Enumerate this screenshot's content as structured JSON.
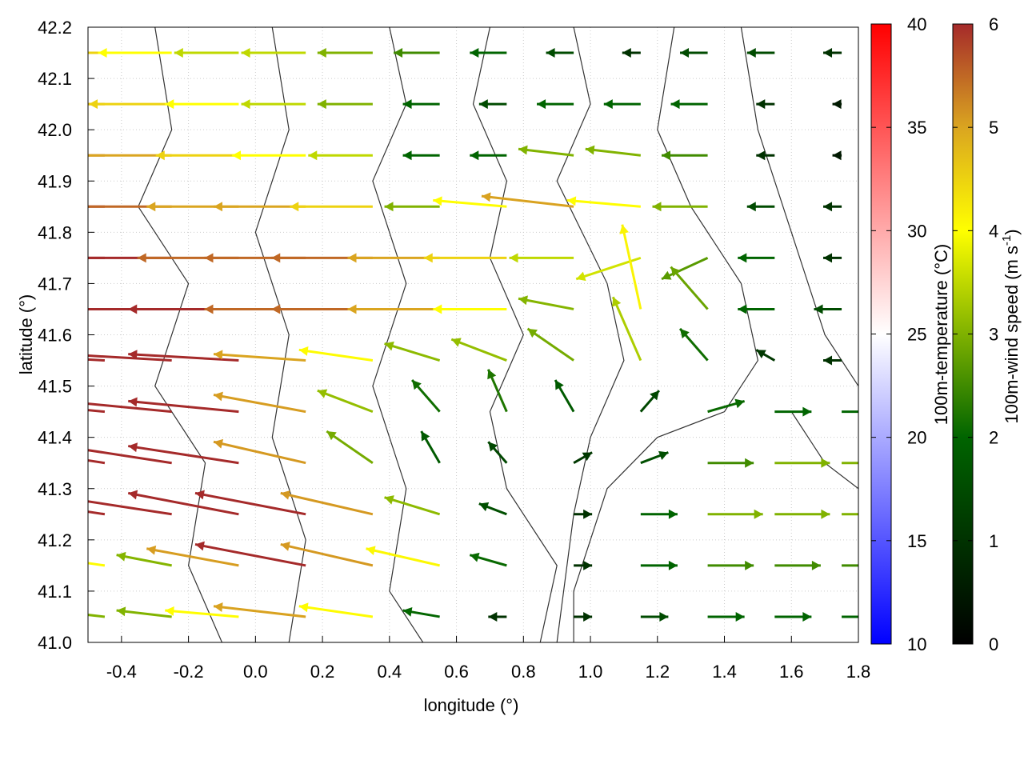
{
  "chart_data": {
    "type": "vector-field",
    "xlabel": "longitude (°)",
    "ylabel": "latitude (°)",
    "xlim": [
      -0.5,
      1.8
    ],
    "ylim": [
      41.0,
      42.2
    ],
    "xticks": [
      "-0.4",
      "-0.2",
      "0.0",
      "0.2",
      "0.4",
      "0.6",
      "0.8",
      "1.0",
      "1.2",
      "1.4",
      "1.6",
      "1.8"
    ],
    "xtick_values": [
      -0.4,
      -0.2,
      0.0,
      0.2,
      0.4,
      0.6,
      0.8,
      1.0,
      1.2,
      1.4,
      1.6,
      1.8
    ],
    "yticks": [
      "41.0",
      "41.1",
      "41.2",
      "41.3",
      "41.4",
      "41.5",
      "41.6",
      "41.7",
      "41.8",
      "41.9",
      "42.0",
      "42.1",
      "42.2"
    ],
    "ytick_values": [
      41.0,
      41.1,
      41.2,
      41.3,
      41.4,
      41.5,
      41.6,
      41.7,
      41.8,
      41.9,
      42.0,
      42.1,
      42.2
    ],
    "grid": true,
    "colorbars": [
      {
        "label": "100m-temperature (°C)",
        "range": [
          10,
          40
        ],
        "ticks": [
          "10",
          "15",
          "20",
          "25",
          "30",
          "35",
          "40"
        ],
        "colors": [
          "#0000ff",
          "#ffffff",
          "#ff0000"
        ]
      },
      {
        "label_main": "100m-wind speed (m s",
        "label_sup": "-1",
        "label_end": ")",
        "range": [
          0,
          6
        ],
        "ticks": [
          "0",
          "1",
          "2",
          "3",
          "4",
          "5",
          "6"
        ],
        "colors": [
          "#000000",
          "#006400",
          "#ffff00",
          "#daa520",
          "#a52a2a"
        ]
      }
    ],
    "wind_units": "m/s",
    "grid_lons": [
      -0.45,
      -0.25,
      -0.05,
      0.15,
      0.35,
      0.55,
      0.75,
      0.95,
      1.15,
      1.35,
      1.55,
      1.75
    ],
    "grid_lats": [
      42.15,
      42.05,
      41.95,
      41.85,
      41.75,
      41.65,
      41.55,
      41.45,
      41.35,
      41.25,
      41.15,
      41.05
    ],
    "u": [
      [
        -4.5,
        -4,
        -3.5,
        -3.5,
        -3,
        -2.5,
        -2,
        -1.5,
        -1,
        -1.5,
        -1.5,
        -1
      ],
      [
        -5,
        -4.5,
        -4,
        -3.5,
        -3,
        -2,
        -1.5,
        -2,
        -2,
        -2,
        -1,
        -0.5
      ],
      [
        -5.5,
        -5,
        -4.5,
        -4,
        -3.5,
        -2,
        -2,
        -3,
        -3,
        -2.5,
        -1,
        -0.5
      ],
      [
        -6,
        -5.5,
        -5,
        -5,
        -4.5,
        -3,
        -4,
        -5,
        -4,
        -3,
        -1.5,
        -1
      ],
      [
        -6,
        -6,
        -5.5,
        -5.5,
        -5.5,
        -5,
        -4.5,
        -3.5,
        -3.5,
        -2.5,
        -2,
        -1
      ],
      [
        -6,
        -6,
        -6,
        -5.5,
        -5.5,
        -5,
        -4,
        -3,
        -1,
        -2,
        -2,
        -1.5
      ],
      [
        -6,
        -6,
        -6,
        -5,
        -4,
        -3,
        -3,
        -2.5,
        -1.5,
        -1.5,
        -1,
        -1
      ],
      [
        -6,
        -6,
        -6,
        -5,
        -3,
        -1.5,
        -1,
        -1,
        1,
        2,
        2,
        2
      ],
      [
        -6,
        -6,
        -6,
        -5,
        -2.5,
        -1,
        -1,
        1,
        1.5,
        2.5,
        3,
        3
      ],
      [
        -6,
        -6,
        -6,
        -6,
        -5,
        -3,
        -1.5,
        1,
        2,
        3,
        3,
        3
      ],
      [
        -4,
        -3,
        -5,
        -6,
        -5,
        -4,
        -2,
        1,
        2,
        2.5,
        2.5,
        2.5
      ],
      [
        -3,
        -3,
        -4,
        -5,
        -4,
        -2,
        -1,
        1,
        1.5,
        2,
        2,
        2
      ]
    ],
    "v": [
      [
        0,
        0,
        0,
        0,
        0,
        0,
        0,
        0,
        0,
        0,
        0,
        0
      ],
      [
        0,
        0,
        0,
        0,
        0,
        0,
        0,
        0,
        0,
        0,
        0,
        0
      ],
      [
        0,
        0,
        0,
        0,
        0,
        0,
        0,
        0.3,
        0.3,
        0,
        0,
        0
      ],
      [
        0,
        0,
        0,
        0,
        0,
        0,
        0.3,
        0.5,
        0.3,
        0,
        0,
        0
      ],
      [
        0,
        0,
        0,
        0,
        0,
        0,
        0,
        0,
        -1,
        -1,
        0,
        0
      ],
      [
        0,
        0,
        0,
        0,
        0,
        0,
        0,
        0.5,
        4,
        2,
        0,
        0
      ],
      [
        0.3,
        0.3,
        0.3,
        0.3,
        0.5,
        0.8,
        1,
        1.5,
        3,
        1.5,
        0.5,
        0
      ],
      [
        0.5,
        0.5,
        0.5,
        0.8,
        1,
        1.5,
        2,
        1.5,
        1,
        0.5,
        0,
        0
      ],
      [
        0.8,
        0.8,
        0.8,
        1,
        1.5,
        1.5,
        1,
        0.5,
        0.5,
        0,
        0,
        0
      ],
      [
        0.8,
        0.8,
        1,
        1,
        1,
        0.8,
        0.5,
        0,
        0,
        0,
        0,
        0
      ],
      [
        0.5,
        0.5,
        0.8,
        1,
        1,
        0.8,
        0.5,
        0,
        0,
        0,
        0,
        0
      ],
      [
        0.3,
        0.3,
        0.3,
        0.5,
        0.5,
        0.3,
        0,
        0,
        0,
        0,
        0,
        0
      ]
    ],
    "contours": [
      [
        [
          -0.3,
          42.2
        ],
        [
          -0.25,
          42.0
        ],
        [
          -0.35,
          41.85
        ],
        [
          -0.2,
          41.7
        ],
        [
          -0.3,
          41.5
        ],
        [
          -0.15,
          41.35
        ],
        [
          -0.2,
          41.15
        ],
        [
          -0.1,
          41.0
        ]
      ],
      [
        [
          0.05,
          42.2
        ],
        [
          0.1,
          42.0
        ],
        [
          0.0,
          41.8
        ],
        [
          0.1,
          41.6
        ],
        [
          0.05,
          41.4
        ],
        [
          0.15,
          41.2
        ],
        [
          0.1,
          41.0
        ]
      ],
      [
        [
          0.4,
          42.2
        ],
        [
          0.45,
          42.05
        ],
        [
          0.35,
          41.9
        ],
        [
          0.45,
          41.7
        ],
        [
          0.35,
          41.5
        ],
        [
          0.45,
          41.3
        ],
        [
          0.4,
          41.1
        ],
        [
          0.5,
          41.0
        ]
      ],
      [
        [
          0.7,
          42.2
        ],
        [
          0.65,
          42.05
        ],
        [
          0.75,
          41.9
        ],
        [
          0.7,
          41.75
        ],
        [
          0.8,
          41.6
        ],
        [
          0.7,
          41.45
        ],
        [
          0.75,
          41.3
        ],
        [
          0.9,
          41.15
        ],
        [
          0.85,
          41.0
        ]
      ],
      [
        [
          0.95,
          42.2
        ],
        [
          1.0,
          42.05
        ],
        [
          0.9,
          41.9
        ],
        [
          1.05,
          41.7
        ],
        [
          1.1,
          41.55
        ],
        [
          1.0,
          41.4
        ],
        [
          0.95,
          41.25
        ],
        [
          0.9,
          41.0
        ]
      ],
      [
        [
          1.25,
          42.2
        ],
        [
          1.2,
          42.0
        ],
        [
          1.3,
          41.85
        ],
        [
          1.45,
          41.7
        ],
        [
          1.5,
          41.55
        ],
        [
          1.4,
          41.45
        ],
        [
          1.2,
          41.4
        ],
        [
          1.05,
          41.3
        ],
        [
          0.95,
          41.1
        ],
        [
          0.95,
          41.0
        ]
      ],
      [
        [
          1.45,
          42.2
        ],
        [
          1.5,
          42.0
        ],
        [
          1.6,
          41.8
        ],
        [
          1.7,
          41.6
        ],
        [
          1.8,
          41.5
        ]
      ],
      [
        [
          1.6,
          41.45
        ],
        [
          1.7,
          41.35
        ],
        [
          1.8,
          41.3
        ]
      ]
    ]
  }
}
